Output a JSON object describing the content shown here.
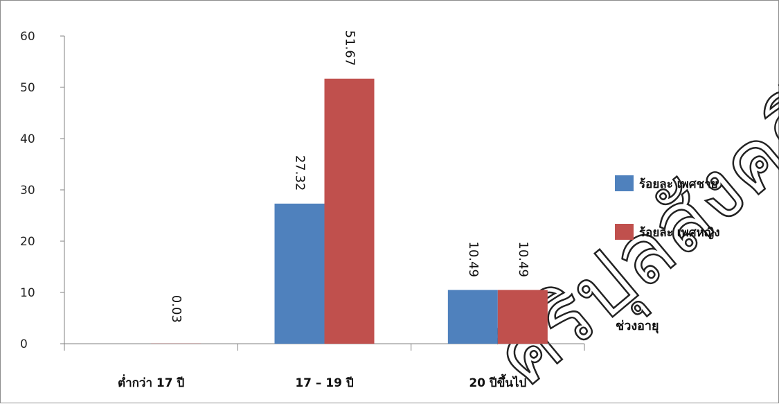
{
  "chart_data": {
    "type": "bar",
    "categories": [
      "ต่ำกว่า 17 ปี",
      "17 – 19 ปี",
      "20 ปีขึ้นไป"
    ],
    "series": [
      {
        "name": "ร้อยละ เพศชาย",
        "values": [
          null,
          27.32,
          10.49
        ],
        "labels": [
          "",
          "27.32",
          "10.49"
        ],
        "color": "#4f81bd"
      },
      {
        "name": "ร้อยละ เพศหญิง",
        "values": [
          0.03,
          51.67,
          10.49
        ],
        "labels": [
          "0.03",
          "51.67",
          "10.49"
        ],
        "color": "#c0504d"
      }
    ],
    "yticks": [
      "0",
      "10",
      "20",
      "30",
      "40",
      "50",
      "60"
    ],
    "ylim": [
      0,
      60
    ],
    "xlabel": "ช่วงอายุ",
    "legend_position": "right",
    "grid": false
  },
  "watermark_text": "ศิริปุลสังคดีวจ"
}
